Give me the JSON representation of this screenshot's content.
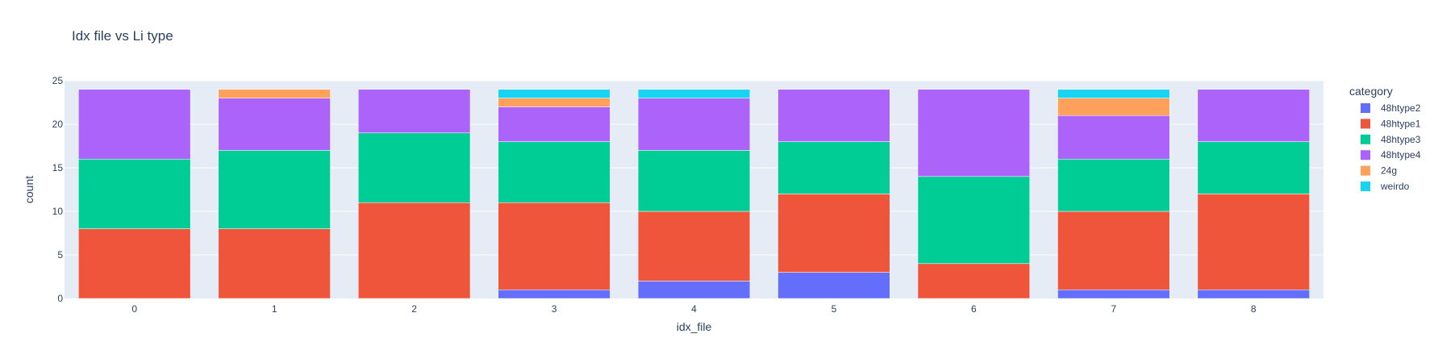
{
  "chart_data": {
    "type": "bar",
    "barmode": "stack",
    "title": "Idx file vs Li type",
    "xlabel": "idx_file",
    "ylabel": "count",
    "ylim": [
      0,
      25
    ],
    "y_ticks": [
      0,
      5,
      10,
      15,
      20,
      25
    ],
    "categories": [
      "0",
      "1",
      "2",
      "3",
      "4",
      "5",
      "6",
      "7",
      "8"
    ],
    "legend_title": "category",
    "legend_position": "right",
    "grid": true,
    "plot_background": "#e5ecf6",
    "series": [
      {
        "name": "48htype2",
        "color": "#636efa",
        "values": [
          0,
          0,
          0,
          1,
          2,
          3,
          0,
          1,
          1
        ]
      },
      {
        "name": "48htype1",
        "color": "#ef553b",
        "values": [
          8,
          8,
          11,
          10,
          8,
          9,
          4,
          9,
          11
        ]
      },
      {
        "name": "48htype3",
        "color": "#00cc96",
        "values": [
          8,
          9,
          8,
          7,
          7,
          6,
          10,
          6,
          6
        ]
      },
      {
        "name": "48htype4",
        "color": "#ab63fa",
        "values": [
          8,
          6,
          5,
          4,
          6,
          6,
          10,
          5,
          6
        ]
      },
      {
        "name": "24g",
        "color": "#ffa15a",
        "values": [
          0,
          1,
          0,
          1,
          0,
          0,
          0,
          2,
          0
        ]
      },
      {
        "name": "weirdo",
        "color": "#19d3f3",
        "values": [
          0,
          0,
          0,
          1,
          1,
          0,
          0,
          1,
          0
        ]
      }
    ]
  }
}
